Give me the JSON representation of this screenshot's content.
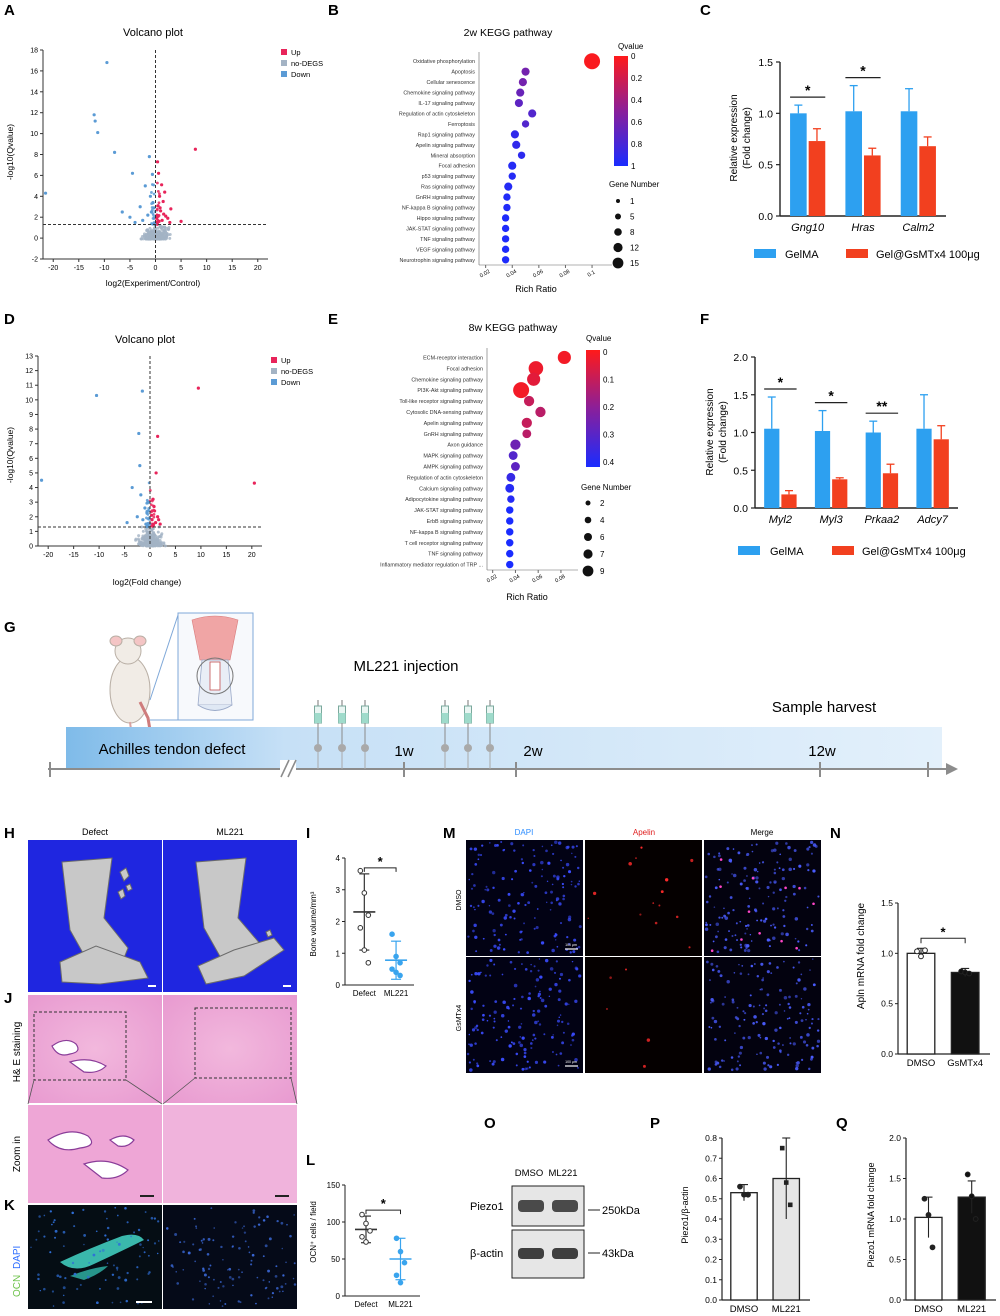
{
  "panels": {
    "A": "A",
    "B": "B",
    "C": "C",
    "D": "D",
    "E": "E",
    "F": "F",
    "G": "G",
    "H": "H",
    "I": "I",
    "J": "J",
    "K": "K",
    "L": "L",
    "M": "M",
    "N": "N",
    "O": "O",
    "P": "P",
    "Q": "Q"
  },
  "colors": {
    "gelma": "#2da0f0",
    "gsmtx": "#f2401f",
    "up": "#e8245a",
    "nodegs": "#a3b3c4",
    "down": "#5b9bd5",
    "defect_pts": "#333333",
    "ml221_pts": "#39a4ee",
    "timeline": "#cfe5f8"
  },
  "chart_data": [
    {
      "id": "A",
      "type": "scatter",
      "title": "Volcano plot",
      "xlabel": "log2(Experiment/Control)",
      "ylabel": "-log10(Qvalue)",
      "xlim": [
        -22,
        22
      ],
      "ylim": [
        -2,
        18
      ],
      "xticks": [
        "-20",
        "-15",
        "-10",
        "-5",
        "0",
        "5",
        "10",
        "15",
        "20"
      ],
      "yticks": [
        "-2",
        "0",
        "2",
        "4",
        "6",
        "8",
        "10",
        "12",
        "14",
        "16",
        "18"
      ],
      "threshold_y": 1.3,
      "legend": [
        "Up",
        "no-DEGS",
        "Down"
      ],
      "up_points": [
        [
          0.3,
          2.2
        ],
        [
          0.5,
          3.1
        ],
        [
          0.8,
          4.0
        ],
        [
          1.0,
          2.6
        ],
        [
          1.2,
          5.1
        ],
        [
          0.6,
          6.2
        ],
        [
          1.5,
          3.5
        ],
        [
          2.0,
          2.1
        ],
        [
          0.4,
          7.3
        ],
        [
          1.8,
          4.4
        ],
        [
          0.9,
          2.9
        ],
        [
          2.4,
          1.9
        ],
        [
          3.0,
          2.8
        ],
        [
          7.8,
          8.5
        ],
        [
          1.3,
          1.7
        ],
        [
          0.7,
          1.6
        ],
        [
          2.8,
          1.5
        ],
        [
          5.0,
          1.6
        ],
        [
          0.2,
          1.9
        ],
        [
          1.6,
          2.3
        ]
      ],
      "down_points": [
        [
          -9.5,
          16.8
        ],
        [
          -12.0,
          11.8
        ],
        [
          -11.3,
          10.1
        ],
        [
          -11.8,
          11.2
        ],
        [
          -8.0,
          8.2
        ],
        [
          -4.5,
          6.2
        ],
        [
          -2.0,
          5.0
        ],
        [
          -1.0,
          4.0
        ],
        [
          -1.2,
          7.8
        ],
        [
          -3.0,
          3.0
        ],
        [
          -0.5,
          3.4
        ],
        [
          -0.8,
          2.5
        ],
        [
          -5.0,
          2.0
        ],
        [
          -1.5,
          2.2
        ],
        [
          -2.5,
          1.7
        ],
        [
          -6.5,
          2.5
        ],
        [
          -0.3,
          2.9
        ],
        [
          -0.6,
          6.1
        ],
        [
          -4.0,
          1.5
        ],
        [
          -21.5,
          4.3
        ]
      ]
    },
    {
      "id": "B",
      "type": "scatter",
      "title": "2w KEGG pathway",
      "xlabel": "Rich Ratio",
      "xticks": [
        "0.02",
        "0.04",
        "0.06",
        "0.08",
        "0.1"
      ],
      "xlim": [
        0.015,
        0.115
      ],
      "legend_color_title": "Qvalue",
      "color_ticks": [
        "0",
        "0.2",
        "0.4",
        "0.6",
        "0.8",
        "1"
      ],
      "legend_size_title": "Gene Number",
      "size_ticks": [
        "1",
        "5",
        "8",
        "12",
        "15"
      ],
      "pathways": [
        "Oxidative phosphorylation",
        "Apoptosis",
        "Cellular senescence",
        "Chemokine signaling pathway",
        "IL-17 signaling pathway",
        "Regulation of actin cytoskeleton",
        "Ferroptosis",
        "Rap1 signaling pathway",
        "Apelin signaling pathway",
        "Mineral absorption",
        "Focal adhesion",
        "p53 signaling pathway",
        "Ras signaling pathway",
        "GnRH signaling pathway",
        "NF-kappa B signaling pathway",
        "Hippo signaling pathway",
        "JAK-STAT signaling pathway",
        "TNF signaling pathway",
        "VEGF signaling pathway",
        "Neurotrophin signaling pathway"
      ],
      "rich_ratio": [
        0.1,
        0.05,
        0.048,
        0.046,
        0.045,
        0.055,
        0.05,
        0.042,
        0.043,
        0.047,
        0.04,
        0.04,
        0.037,
        0.036,
        0.036,
        0.035,
        0.035,
        0.035,
        0.035,
        0.035
      ],
      "qvalue": [
        0.02,
        0.6,
        0.6,
        0.65,
        0.7,
        0.75,
        0.75,
        0.9,
        0.9,
        0.92,
        0.95,
        0.95,
        0.95,
        0.97,
        0.97,
        0.98,
        0.98,
        0.98,
        0.98,
        0.98
      ],
      "gene_number": [
        15,
        5,
        5,
        5,
        5,
        5,
        4,
        5,
        5,
        4,
        5,
        4,
        5,
        4,
        4,
        4,
        4,
        4,
        4,
        4
      ]
    },
    {
      "id": "C",
      "type": "bar",
      "ylabel": "Relative expression\n(Fold change)",
      "categories": [
        "Gng10",
        "Hras",
        "Calm2"
      ],
      "ylim": [
        0,
        1.5
      ],
      "yticks": [
        "0.0",
        "0.5",
        "1.0",
        "1.5"
      ],
      "series": [
        {
          "name": "GelMA",
          "values": [
            1.0,
            1.02,
            1.02
          ],
          "err": [
            0.08,
            0.25,
            0.22
          ]
        },
        {
          "name": "Gel@GsMTx4 100μg",
          "values": [
            0.73,
            0.59,
            0.68
          ],
          "err": [
            0.12,
            0.07,
            0.09
          ]
        }
      ],
      "significance": [
        "*",
        "*",
        ""
      ]
    },
    {
      "id": "D",
      "type": "scatter",
      "title": "Volcano plot",
      "xlabel": "log2(Fold change)",
      "ylabel": "-log10(Qvalue)",
      "xlim": [
        -22,
        22
      ],
      "ylim": [
        0,
        13
      ],
      "xticks": [
        "-20",
        "-15",
        "-10",
        "-5",
        "0",
        "5",
        "10",
        "15",
        "20"
      ],
      "yticks": [
        "0",
        "1",
        "2",
        "3",
        "4",
        "5",
        "6",
        "7",
        "8",
        "9",
        "10",
        "11",
        "12",
        "13"
      ],
      "threshold_y": 1.3,
      "legend": [
        "Up",
        "no-DEGS",
        "Down"
      ],
      "up_points": [
        [
          9.5,
          10.8
        ],
        [
          20.5,
          4.3
        ],
        [
          1.5,
          7.5
        ],
        [
          1.2,
          5.0
        ],
        [
          0.6,
          3.2
        ],
        [
          0.9,
          2.4
        ],
        [
          1.5,
          2.0
        ],
        [
          0.4,
          1.8
        ],
        [
          1.1,
          1.6
        ],
        [
          2.0,
          1.5
        ],
        [
          0.8,
          2.7
        ],
        [
          0.3,
          2.1
        ],
        [
          1.7,
          1.8
        ],
        [
          0.6,
          1.5
        ]
      ],
      "down_points": [
        [
          -10.5,
          10.3
        ],
        [
          -1.5,
          10.6
        ],
        [
          -2.2,
          7.7
        ],
        [
          -21.3,
          4.5
        ],
        [
          -3.5,
          4.0
        ],
        [
          -1.8,
          3.5
        ],
        [
          -1.0,
          2.6
        ],
        [
          -2.5,
          2.0
        ],
        [
          -0.6,
          2.3
        ],
        [
          -1.4,
          1.8
        ],
        [
          -4.5,
          1.6
        ],
        [
          -0.4,
          3.0
        ],
        [
          -0.8,
          1.5
        ],
        [
          -2.0,
          5.5
        ]
      ]
    },
    {
      "id": "E",
      "type": "scatter",
      "title": "8w KEGG pathway",
      "xlabel": "Rich Ratio",
      "xticks": [
        "0.02",
        "0.04",
        "0.06",
        "0.08"
      ],
      "xlim": [
        0.015,
        0.095
      ],
      "legend_color_title": "Qvalue",
      "color_ticks": [
        "0",
        "0.1",
        "0.2",
        "0.3",
        "0.4"
      ],
      "legend_size_title": "Gene Number",
      "size_ticks": [
        "2",
        "4",
        "6",
        "7",
        "9"
      ],
      "pathways": [
        "ECM-receptor interaction",
        "Focal adhesion",
        "Chemokine signaling pathway",
        "PI3K-Akt signaling pathway",
        "Toll-like receptor signaling pathway",
        "Cytosolic DNA-sensing pathway",
        "Apelin signaling pathway",
        "GnRH signaling pathway",
        "Axon guidance",
        "MAPK signaling pathway",
        "AMPK signaling pathway",
        "Regulation of actin cytoskeleton",
        "Calcium signaling pathway",
        "Adipocytokine signaling pathway",
        "JAK-STAT signaling pathway",
        "ErbB signaling pathway",
        "NF-kappa B signaling pathway",
        "T cell receptor signaling pathway",
        "TNF signaling pathway",
        "Inflammatory mediator regulation of TRP ..."
      ],
      "rich_ratio": [
        0.083,
        0.058,
        0.056,
        0.045,
        0.052,
        0.062,
        0.05,
        0.05,
        0.04,
        0.038,
        0.04,
        0.036,
        0.035,
        0.036,
        0.035,
        0.035,
        0.035,
        0.035,
        0.035,
        0.035
      ],
      "qvalue": [
        0.02,
        0.03,
        0.05,
        0.02,
        0.1,
        0.12,
        0.1,
        0.12,
        0.25,
        0.3,
        0.28,
        0.35,
        0.38,
        0.38,
        0.4,
        0.4,
        0.4,
        0.4,
        0.4,
        0.4
      ],
      "gene_number": [
        7,
        8,
        7,
        9,
        5,
        5,
        5,
        4,
        5,
        4,
        4,
        4,
        4,
        3,
        3,
        3,
        3,
        3,
        3,
        3
      ]
    },
    {
      "id": "F",
      "type": "bar",
      "ylabel": "Relative expression\n(Fold change)",
      "categories": [
        "Myl2",
        "Myl3",
        "Prkaa2",
        "Adcy7"
      ],
      "ylim": [
        0,
        2.0
      ],
      "yticks": [
        "0.0",
        "0.5",
        "1.0",
        "1.5",
        "2.0"
      ],
      "series": [
        {
          "name": "GelMA",
          "values": [
            1.05,
            1.02,
            1.0,
            1.05
          ],
          "err": [
            0.42,
            0.27,
            0.15,
            0.45
          ]
        },
        {
          "name": "Gel@GsMTx4 100μg",
          "values": [
            0.18,
            0.38,
            0.46,
            0.91
          ],
          "err": [
            0.05,
            0.02,
            0.12,
            0.18
          ]
        }
      ],
      "significance": [
        "*",
        "*",
        "**",
        ""
      ]
    },
    {
      "id": "I",
      "type": "scatter",
      "ylabel": "Bone volume/mm³",
      "categories": [
        "Defect",
        "ML221"
      ],
      "ylim": [
        0,
        4
      ],
      "yticks": [
        "0",
        "1",
        "2",
        "3",
        "4"
      ],
      "means": [
        2.3,
        0.78
      ],
      "sd": [
        1.2,
        0.6
      ],
      "points": [
        [
          3.6,
          2.9,
          2.2,
          1.8,
          1.1,
          0.7
        ],
        [
          1.6,
          0.9,
          0.7,
          0.5,
          0.4,
          0.3
        ]
      ],
      "significance": "*"
    },
    {
      "id": "L",
      "type": "scatter",
      "ylabel": "OCN⁺ cells / field",
      "categories": [
        "Defect",
        "ML221"
      ],
      "ylim": [
        0,
        150
      ],
      "yticks": [
        "0",
        "50",
        "100",
        "150"
      ],
      "means": [
        90,
        50
      ],
      "sd": [
        18,
        28
      ],
      "points": [
        [
          110,
          98,
          88,
          80,
          73
        ],
        [
          78,
          60,
          45,
          28,
          18
        ]
      ],
      "significance": "*"
    },
    {
      "id": "N",
      "type": "bar",
      "ylabel": "Apln mRNA fold change",
      "categories": [
        "DMSO",
        "GsMTx4"
      ],
      "ylim": [
        0,
        1.5
      ],
      "yticks": [
        "0.0",
        "0.5",
        "1.0",
        "1.5"
      ],
      "values": [
        1.0,
        0.81
      ],
      "err": [
        0.05,
        0.04
      ],
      "points": [
        [
          1.02,
          0.97,
          1.03
        ],
        [
          0.82,
          0.81,
          0.8
        ]
      ],
      "significance": "*"
    },
    {
      "id": "P",
      "type": "bar",
      "ylabel": "Piezo1/β-actin",
      "categories": [
        "DMSO",
        "ML221"
      ],
      "ylim": [
        0,
        0.8
      ],
      "yticks": [
        "0.0",
        "0.1",
        "0.2",
        "0.3",
        "0.4",
        "0.5",
        "0.6",
        "0.7",
        "0.8"
      ],
      "values": [
        0.53,
        0.6
      ],
      "err": [
        0.04,
        0.2
      ],
      "points": [
        [
          0.56,
          0.52,
          0.52
        ],
        [
          0.75,
          0.58,
          0.47
        ]
      ]
    },
    {
      "id": "Q",
      "type": "bar",
      "ylabel": "Piezo1 mRNA fold change",
      "categories": [
        "DMSO",
        "ML221"
      ],
      "ylim": [
        0,
        2.0
      ],
      "yticks": [
        "0.0",
        "0.5",
        "1.0",
        "1.5",
        "2.0"
      ],
      "values": [
        1.02,
        1.27
      ],
      "err": [
        0.25,
        0.2
      ],
      "points": [
        [
          1.25,
          1.05,
          0.65
        ],
        [
          1.55,
          1.28,
          1.0
        ]
      ]
    }
  ],
  "legends": {
    "c_gelma": "GelMA",
    "c_gsmtx": "Gel@GsMTx4 100μg",
    "f_gelma": "GelMA",
    "f_gsmtx": "Gel@GsMTx4 100μg",
    "volcano_up": "Up",
    "volcano_no": "no-DEGS",
    "volcano_down": "Down"
  },
  "timeline": {
    "injection": "ML221 injection",
    "harvest": "Sample harvest",
    "defect": "Achilles tendon defect",
    "w1": "1w",
    "w2": "2w",
    "w12": "12w"
  },
  "micro": {
    "h_defect": "Defect",
    "h_ml221": "ML221",
    "j_label": "H& E staining",
    "zoom_label": "Zoom in",
    "k_ocn": "OCN",
    "k_dapi": "DAPI",
    "m_dapi": "DAPI",
    "m_apelin": "Apelin",
    "m_merge": "Merge",
    "m_dmso": "DMSO",
    "m_gsmtx": "GsMTx4",
    "scale_top": "100 μm",
    "scale_bottom": "100 μm"
  },
  "western": {
    "dmso": "DMSO",
    "ml221": "ML221",
    "piezo1": "Piezo1",
    "bactin": "β-actin",
    "kda250": "250kDa",
    "kda43": "43kDa"
  }
}
